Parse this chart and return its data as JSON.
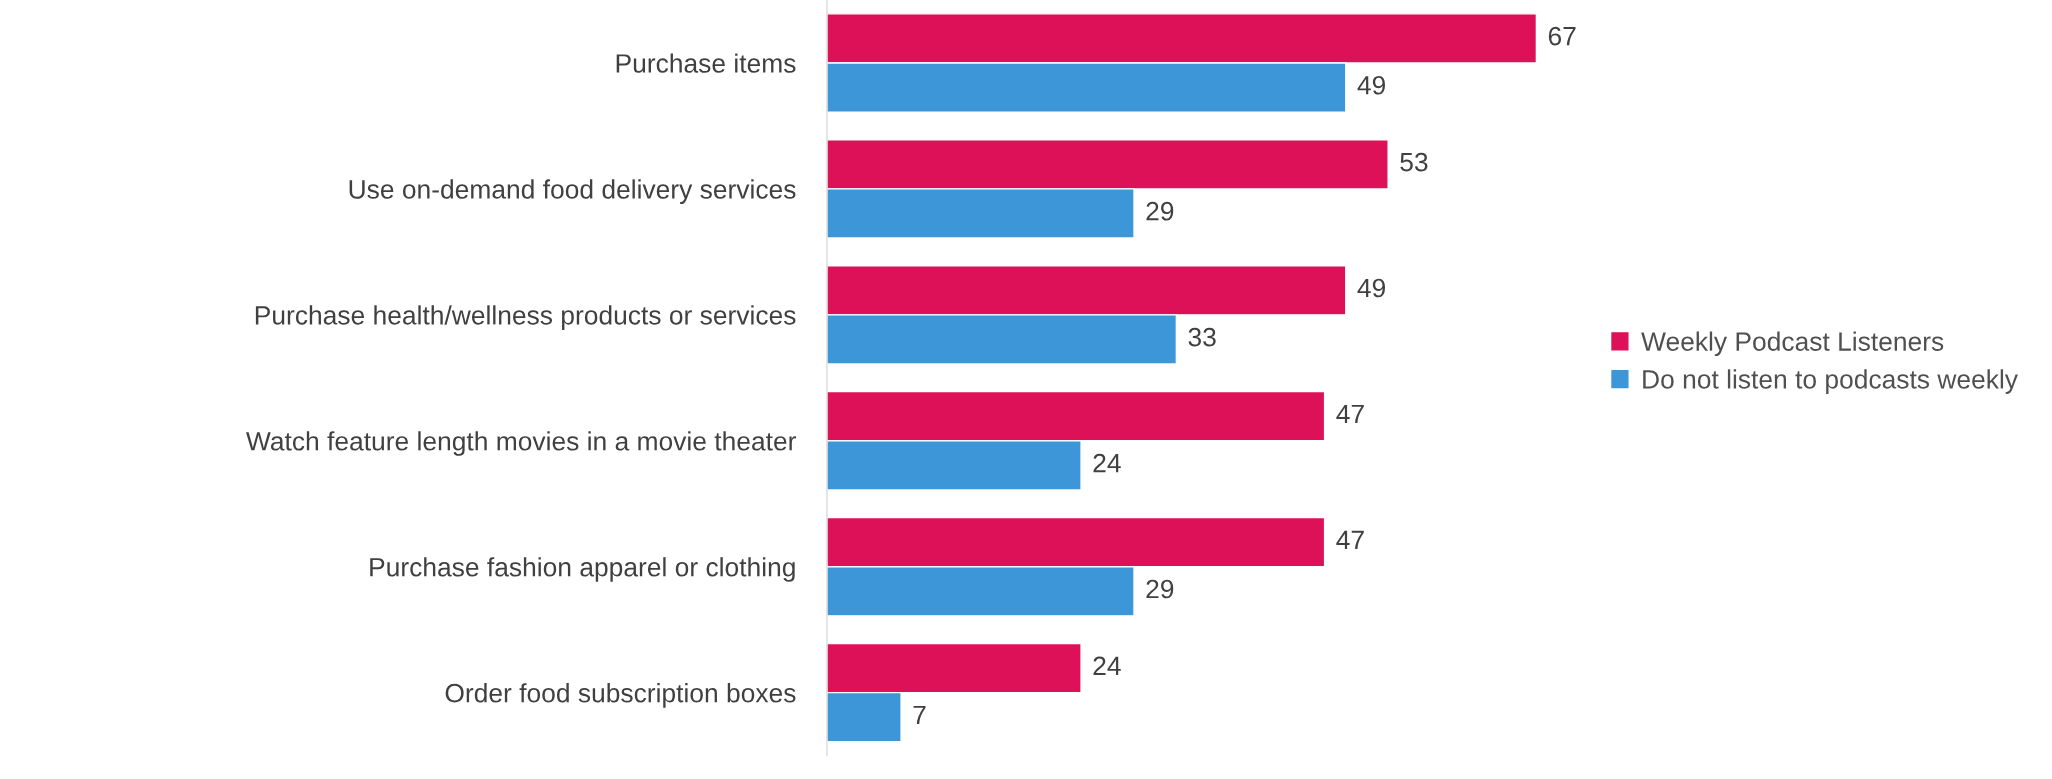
{
  "chart_data": {
    "type": "bar",
    "orientation": "horizontal",
    "categories": [
      "Purchase items",
      "Use on-demand food delivery services",
      "Purchase health/wellness products or services",
      "Watch feature length movies in a movie theater",
      "Purchase fashion apparel or clothing",
      "Order food subscription boxes"
    ],
    "series": [
      {
        "name": "Weekly Podcast Listeners",
        "color": "#dc1157",
        "values": [
          67,
          53,
          49,
          47,
          47,
          24
        ]
      },
      {
        "name": "Do not listen to podcasts weekly",
        "color": "#3c96d8",
        "values": [
          49,
          29,
          33,
          24,
          29,
          7
        ]
      }
    ],
    "data_labels": true,
    "legend": "right",
    "grid": false
  }
}
